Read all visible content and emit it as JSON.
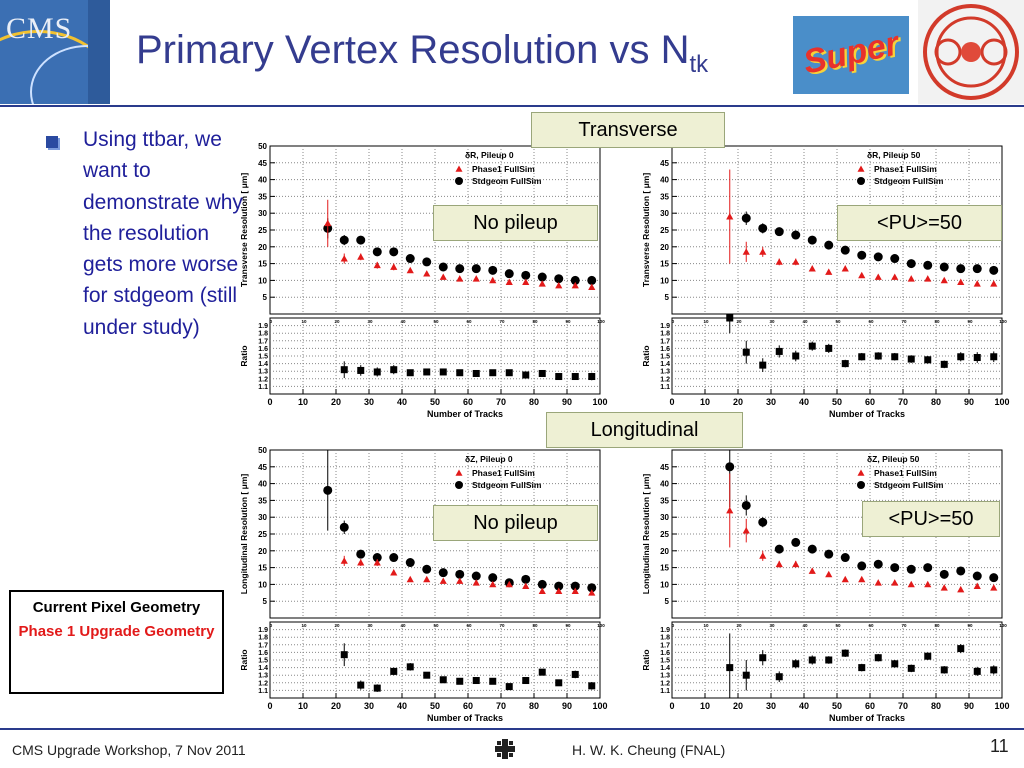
{
  "header": {
    "title_main": "Primary Vertex Resolution vs N",
    "title_sub": "tk",
    "logo_text": "CMS",
    "super_text": "Super"
  },
  "bullet": {
    "text": "Using ttbar, we want to demonstrate why the resolution gets more worse for stdgeom (still under study)"
  },
  "section_labels": {
    "transverse": "Transverse",
    "longitudinal": "Longitudinal"
  },
  "legend_box": {
    "line1": "Current Pixel Geometry",
    "line2": "Phase 1 Upgrade Geometry"
  },
  "footer": {
    "left": "CMS Upgrade Workshop, 7 Nov 2011",
    "center": "H. W. K. Cheung (FNAL)",
    "page": "11"
  },
  "colors": {
    "title": "#343c8f",
    "bullet_text": "#1f1f9a",
    "phase1": "#e21a1a",
    "stdgeom": "#000000",
    "label_bg": "#eef0d4",
    "rule": "#2a3b8c"
  },
  "chart_data": [
    {
      "type": "scatter",
      "panel_label": "No pileup",
      "legend_title": "δR, Pileup 0",
      "ylabel": "Transverse Resolution  [   μm]",
      "ratio_ylabel": "Ratio",
      "xlabel": "Number of Tracks",
      "xlim": [
        0,
        100
      ],
      "ylim": [
        0,
        50
      ],
      "ratio_ylim": [
        1.0,
        2.0
      ],
      "yticks": [
        5,
        10,
        15,
        20,
        25,
        30,
        35,
        40,
        45,
        50
      ],
      "ratio_yticks": [
        "1.1",
        "1.2",
        "1.3",
        "1.4",
        "1.5",
        "1.6",
        "1.7",
        "1.8",
        "1.9"
      ],
      "xticks": [
        0,
        10,
        20,
        30,
        40,
        50,
        60,
        70,
        80,
        90,
        100
      ],
      "x": [
        17.5,
        22.5,
        27.5,
        32.5,
        37.5,
        42.5,
        47.5,
        52.5,
        57.5,
        62.5,
        67.5,
        72.5,
        77.5,
        82.5,
        87.5,
        92.5,
        97.5
      ],
      "series": [
        {
          "name": "Phase1 FullSim",
          "marker": "triangle",
          "values": [
            27,
            16.5,
            17,
            14.5,
            14,
            13,
            12,
            11,
            10.5,
            10.5,
            10,
            9.5,
            9.5,
            9,
            8.5,
            8.5,
            8
          ],
          "err": [
            7,
            1.5,
            1,
            1,
            1,
            0.6,
            0.6,
            0.5,
            0.5,
            0.5,
            0.5,
            0.5,
            0.5,
            0.5,
            0.5,
            0.5,
            0.5
          ]
        },
        {
          "name": "Stdgeom FullSim",
          "marker": "circle",
          "values": [
            25.5,
            22,
            22,
            18.5,
            18.5,
            16.5,
            15.5,
            14,
            13.5,
            13.5,
            13,
            12,
            11.5,
            11,
            10.5,
            10,
            10
          ],
          "err": [
            3,
            1.5,
            1,
            0.7,
            0.7,
            0.6,
            0.5,
            0.5,
            0.5,
            0.5,
            0.5,
            0.5,
            0.5,
            0.5,
            0.5,
            0.5,
            0.5
          ]
        },
        {
          "name": "Ratio",
          "marker": "square",
          "values": [
            null,
            1.32,
            1.31,
            1.29,
            1.32,
            1.28,
            1.29,
            1.29,
            1.28,
            1.27,
            1.28,
            1.28,
            1.25,
            1.27,
            1.23,
            1.23,
            1.23
          ],
          "err": [
            0,
            0.11,
            0.07,
            0.06,
            0.06,
            0.04,
            0.04,
            0.04,
            0.04,
            0.04,
            0.04,
            0.04,
            0.04,
            0.04,
            0.04,
            0.04,
            0.05
          ]
        }
      ]
    },
    {
      "type": "scatter",
      "panel_label": "<PU>=50",
      "legend_title": "δR, Pileup 50",
      "ylabel": "Transverse Resolution  [   μm]",
      "ratio_ylabel": "Ratio",
      "xlabel": "Number of Tracks",
      "xlim": [
        0,
        100
      ],
      "ylim": [
        0,
        50
      ],
      "ratio_ylim": [
        1.0,
        2.0
      ],
      "yticks": [
        5,
        10,
        15,
        20,
        25,
        30,
        35,
        40,
        45
      ],
      "ratio_yticks": [
        "1.1",
        "1.2",
        "1.3",
        "1.4",
        "1.5",
        "1.6",
        "1.7",
        "1.8",
        "1.9"
      ],
      "xticks": [
        0,
        10,
        20,
        30,
        40,
        50,
        60,
        70,
        80,
        90,
        100
      ],
      "x": [
        17.5,
        22.5,
        27.5,
        32.5,
        37.5,
        42.5,
        47.5,
        52.5,
        57.5,
        62.5,
        67.5,
        72.5,
        77.5,
        82.5,
        87.5,
        92.5,
        97.5
      ],
      "series": [
        {
          "name": "Phase1 FullSim",
          "marker": "triangle",
          "values": [
            29,
            18.5,
            18.5,
            15.5,
            15.5,
            13.5,
            12.5,
            13.5,
            11.5,
            11,
            11,
            10.5,
            10.5,
            10,
            9.5,
            9,
            9
          ],
          "err": [
            14,
            3,
            1.5,
            1,
            1,
            0.7,
            0.7,
            0.6,
            0.6,
            0.5,
            0.5,
            0.5,
            0.5,
            0.5,
            0.5,
            0.5,
            0.5
          ]
        },
        {
          "name": "Stdgeom FullSim",
          "marker": "circle",
          "values": [
            null,
            28.5,
            25.5,
            24.5,
            23.5,
            22,
            20.5,
            19,
            17.5,
            17,
            16.5,
            15,
            14.5,
            14,
            13.5,
            13.5,
            13
          ],
          "err": [
            0,
            2,
            1.5,
            1,
            1,
            0.8,
            0.8,
            0.6,
            0.6,
            0.5,
            0.5,
            0.5,
            0.5,
            0.5,
            0.5,
            0.5,
            0.5
          ]
        },
        {
          "name": "Ratio",
          "marker": "square",
          "values": [
            2.0,
            1.55,
            1.38,
            1.56,
            1.5,
            1.63,
            1.6,
            1.4,
            1.49,
            1.5,
            1.49,
            1.46,
            1.45,
            1.39,
            1.49,
            1.48,
            1.49
          ],
          "err": [
            0.2,
            0.15,
            0.09,
            0.08,
            0.07,
            0.06,
            0.06,
            0.05,
            0.05,
            0.05,
            0.05,
            0.05,
            0.05,
            0.05,
            0.06,
            0.07,
            0.07
          ]
        }
      ]
    },
    {
      "type": "scatter",
      "panel_label": "No pileup",
      "legend_title": "δZ, Pileup 0",
      "ylabel": "Longitudinal Resolution  [   μm]",
      "ratio_ylabel": "Ratio",
      "xlabel": "Number of Tracks",
      "xlim": [
        0,
        100
      ],
      "ylim": [
        0,
        50
      ],
      "ratio_ylim": [
        1.0,
        2.0
      ],
      "yticks": [
        5,
        10,
        15,
        20,
        25,
        30,
        35,
        40,
        45,
        50
      ],
      "ratio_yticks": [
        "1.1",
        "1.2",
        "1.3",
        "1.4",
        "1.5",
        "1.6",
        "1.7",
        "1.8",
        "1.9"
      ],
      "xticks": [
        0,
        10,
        20,
        30,
        40,
        50,
        60,
        70,
        80,
        90,
        100
      ],
      "x": [
        17.5,
        22.5,
        27.5,
        32.5,
        37.5,
        42.5,
        47.5,
        52.5,
        57.5,
        62.5,
        67.5,
        72.5,
        77.5,
        82.5,
        87.5,
        92.5,
        97.5
      ],
      "series": [
        {
          "name": "Phase1 FullSim",
          "marker": "triangle",
          "values": [
            null,
            17,
            16.5,
            16.5,
            13.5,
            11.5,
            11.5,
            11,
            11,
            10.5,
            10,
            10,
            9.5,
            8,
            8,
            8,
            7.5
          ],
          "err": [
            0,
            1.5,
            1,
            1,
            0.8,
            0.6,
            0.6,
            0.5,
            0.5,
            0.5,
            0.5,
            0.5,
            0.5,
            0.5,
            0.5,
            0.5,
            0.5
          ]
        },
        {
          "name": "Stdgeom FullSim",
          "marker": "circle",
          "values": [
            38,
            27,
            19,
            18,
            18,
            16.5,
            14.5,
            13.5,
            13,
            12.5,
            12,
            10.5,
            11.5,
            10,
            9.5,
            9.5,
            9
          ],
          "err": [
            12,
            2,
            1,
            0.8,
            0.8,
            0.7,
            0.6,
            0.6,
            0.5,
            0.5,
            0.5,
            0.5,
            0.5,
            0.5,
            0.5,
            0.5,
            0.5
          ]
        },
        {
          "name": "Ratio",
          "marker": "square",
          "values": [
            null,
            1.57,
            1.17,
            1.13,
            1.35,
            1.41,
            1.3,
            1.24,
            1.22,
            1.23,
            1.22,
            1.15,
            1.23,
            1.34,
            1.2,
            1.31,
            1.16
          ],
          "err": [
            0,
            0.15,
            0.06,
            0.05,
            0.05,
            0.05,
            0.04,
            0.04,
            0.04,
            0.04,
            0.04,
            0.04,
            0.04,
            0.04,
            0.04,
            0.05,
            0.05
          ]
        }
      ]
    },
    {
      "type": "scatter",
      "panel_label": "<PU>=50",
      "legend_title": "δZ, Pileup 50",
      "ylabel": "Longitudinal Resolution  [   μm]",
      "ratio_ylabel": "Ratio",
      "xlabel": "Number of Tracks",
      "xlim": [
        0,
        100
      ],
      "ylim": [
        0,
        50
      ],
      "ratio_ylim": [
        1.0,
        2.0
      ],
      "yticks": [
        5,
        10,
        15,
        20,
        25,
        30,
        35,
        40,
        45
      ],
      "ratio_yticks": [
        "1.1",
        "1.2",
        "1.3",
        "1.4",
        "1.5",
        "1.6",
        "1.7",
        "1.8",
        "1.9"
      ],
      "xticks": [
        0,
        10,
        20,
        30,
        40,
        50,
        60,
        70,
        80,
        90,
        100
      ],
      "x": [
        17.5,
        22.5,
        27.5,
        32.5,
        37.5,
        42.5,
        47.5,
        52.5,
        57.5,
        62.5,
        67.5,
        72.5,
        77.5,
        82.5,
        87.5,
        92.5,
        97.5
      ],
      "series": [
        {
          "name": "Phase1 FullSim",
          "marker": "triangle",
          "values": [
            32,
            26,
            18.5,
            16,
            16,
            14,
            13,
            11.5,
            11.5,
            10.5,
            10.5,
            10,
            10,
            9,
            8.5,
            9.5,
            9
          ],
          "err": [
            11,
            3.5,
            1.5,
            1,
            1,
            0.8,
            0.7,
            0.6,
            0.6,
            0.5,
            0.5,
            0.5,
            0.5,
            0.5,
            0.5,
            0.5,
            0.5
          ]
        },
        {
          "name": "Stdgeom FullSim",
          "marker": "circle",
          "values": [
            45,
            33.5,
            28.5,
            20.5,
            22.5,
            20.5,
            19,
            18,
            15.5,
            16,
            15,
            14.5,
            15,
            13,
            14,
            12.5,
            12
          ],
          "err": [
            12,
            3,
            1.5,
            1,
            1,
            0.8,
            0.7,
            0.6,
            0.6,
            0.6,
            0.5,
            0.5,
            0.5,
            0.5,
            0.5,
            0.5,
            0.5
          ]
        },
        {
          "name": "Ratio",
          "marker": "square",
          "values": [
            1.4,
            1.3,
            1.53,
            1.28,
            1.45,
            1.5,
            1.5,
            1.59,
            1.4,
            1.53,
            1.45,
            1.39,
            1.55,
            1.37,
            1.65,
            1.35,
            1.37
          ],
          "err": [
            0.45,
            0.2,
            0.1,
            0.07,
            0.06,
            0.06,
            0.05,
            0.05,
            0.05,
            0.05,
            0.05,
            0.05,
            0.05,
            0.05,
            0.06,
            0.06,
            0.06
          ]
        }
      ]
    }
  ]
}
